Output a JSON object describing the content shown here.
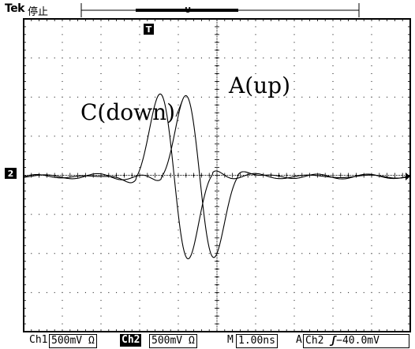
{
  "header": {
    "brand": "Tek",
    "state": "停止"
  },
  "markers": {
    "trigger_position": "T",
    "trigger_level": "U",
    "channel_ground": "2"
  },
  "annotations": {
    "trace_a": "A(up)",
    "trace_c": "C(down)"
  },
  "footer": {
    "ch1_label": "Ch1",
    "ch1_scale": "500mV Ω",
    "ch2_label": "Ch2",
    "ch2_scale": "500mV Ω",
    "timebase_label": "M",
    "timebase_value": "1.00ns",
    "trigger_label": "A",
    "trigger_source": "Ch2",
    "trigger_slope_icon": "rising-edge-icon",
    "trigger_level": "−40.0mV"
  },
  "colors": {
    "trace": "#000000",
    "background": "#ffffff",
    "grid": "#000000"
  }
}
